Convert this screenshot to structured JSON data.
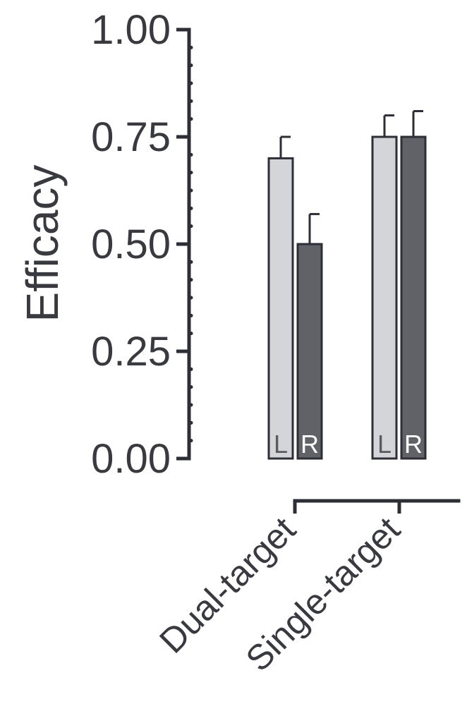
{
  "chart_data": {
    "type": "bar",
    "ylabel": "Efficacy",
    "xlabel": "",
    "ylim": [
      0,
      1.0
    ],
    "yticks": [
      "0.00",
      "0.25",
      "0.50",
      "0.75",
      "1.00"
    ],
    "categories": [
      "Dual-target",
      "Single-target"
    ],
    "series": [
      {
        "name": "L",
        "color": "#d4d5d8",
        "label_color": "#5a5b60",
        "values": [
          0.7,
          0.75
        ],
        "errors": [
          0.05,
          0.05
        ]
      },
      {
        "name": "R",
        "color": "#616268",
        "label_color": "#ffffff",
        "values": [
          0.5,
          0.75
        ],
        "errors": [
          0.07,
          0.06
        ]
      }
    ],
    "grid": false,
    "legend": "none"
  }
}
